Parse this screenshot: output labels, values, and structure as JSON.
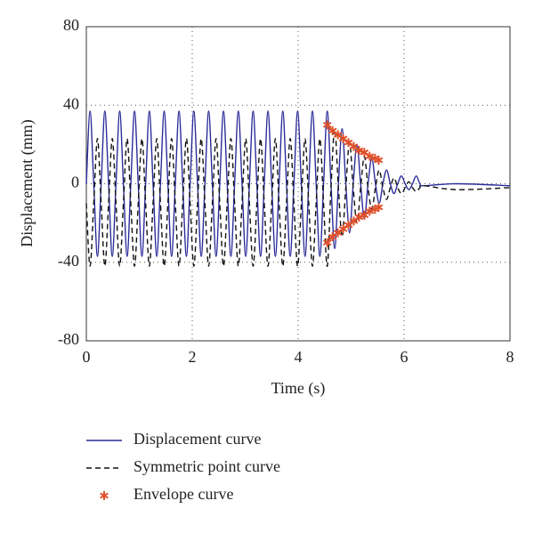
{
  "chart_data": {
    "type": "line",
    "xlabel": "Time (s)",
    "ylabel": "Displacement (mm)",
    "xlim": [
      0,
      8
    ],
    "xticks": [
      0,
      2,
      4,
      6,
      8
    ],
    "ylim": [
      -80,
      80
    ],
    "yticks": [
      -80,
      -40,
      0,
      40,
      80
    ],
    "grid": true,
    "x": [
      0,
      0.07,
      0.14,
      0.21,
      0.28,
      0.35,
      0.42,
      0.49,
      0.56,
      0.63,
      0.7,
      0.77,
      0.84,
      0.91,
      0.98,
      1.05,
      1.12,
      1.19,
      1.26,
      1.33,
      1.4,
      1.47,
      1.54,
      1.61,
      1.68,
      1.75,
      1.82,
      1.89,
      1.96,
      2.03,
      2.1,
      2.17,
      2.24,
      2.31,
      2.38,
      2.45,
      2.52,
      2.59,
      2.66,
      2.73,
      2.8,
      2.87,
      2.94,
      3.01,
      3.08,
      3.15,
      3.22,
      3.29,
      3.36,
      3.43,
      3.5,
      3.57,
      3.64,
      3.71,
      3.78,
      3.85,
      3.92,
      3.99,
      4.06,
      4.13,
      4.2,
      4.27,
      4.34,
      4.41,
      4.48,
      4.55,
      4.62,
      4.69,
      4.76,
      4.83,
      4.9,
      4.97,
      5.04,
      5.11,
      5.18,
      5.25,
      5.32,
      5.39,
      5.46,
      5.53,
      5.6,
      5.67,
      5.74,
      5.81,
      5.88,
      5.95,
      6.02,
      6.09,
      6.16,
      6.23,
      6.3,
      6.37,
      7,
      8
    ],
    "series": [
      {
        "name": "Displacement curve",
        "color": "#2b2b9a",
        "dash": false,
        "values": [
          0,
          37,
          0,
          -37,
          0,
          37,
          0,
          -37,
          0,
          37,
          0,
          -37,
          0,
          37,
          0,
          -37,
          0,
          37,
          0,
          -37,
          0,
          37,
          0,
          -37,
          0,
          37,
          0,
          -37,
          0,
          37,
          0,
          -37,
          0,
          37,
          0,
          -37,
          0,
          37,
          0,
          -37,
          0,
          37,
          0,
          -37,
          0,
          37,
          0,
          -37,
          0,
          37,
          0,
          -37,
          0,
          37,
          0,
          -37,
          0,
          37,
          0,
          -37,
          0,
          37,
          0,
          -37,
          0,
          37,
          0,
          -33,
          0,
          28,
          0,
          -25,
          0,
          20,
          0,
          -18,
          0,
          13,
          0,
          -10,
          0,
          7,
          0,
          -5,
          0,
          4,
          0,
          -3,
          0,
          4,
          0,
          -1,
          0,
          -1
        ]
      },
      {
        "name": "Symmetric point curve",
        "color": "#111111",
        "dash": true,
        "values": [
          -10,
          -42,
          -10,
          23,
          -10,
          -42,
          -10,
          23,
          -10,
          -42,
          -10,
          23,
          -10,
          -42,
          -10,
          23,
          -10,
          -42,
          -10,
          23,
          -10,
          -42,
          -10,
          23,
          -10,
          -42,
          -10,
          23,
          -10,
          -42,
          -10,
          23,
          -10,
          -42,
          -10,
          23,
          -10,
          -42,
          -10,
          23,
          -10,
          -42,
          -10,
          23,
          -10,
          -42,
          -10,
          23,
          -10,
          -42,
          -10,
          23,
          -10,
          -42,
          -10,
          23,
          -10,
          -42,
          -10,
          23,
          -10,
          -42,
          -10,
          23,
          -10,
          -42,
          -2,
          28,
          -2,
          -27,
          -2,
          21,
          -2,
          -20,
          -2,
          14,
          -2,
          -13,
          -2,
          7,
          -2,
          -8,
          -2,
          3,
          -2,
          -5,
          -2,
          1,
          -2,
          -4,
          -2,
          -1,
          -3,
          -2
        ]
      },
      {
        "name": "Envelope curve",
        "color": "#e0502a",
        "marker": true,
        "x": [
          4.55,
          4.65,
          4.75,
          4.85,
          4.95,
          5.05,
          5.15,
          5.25,
          5.35,
          5.45,
          5.52
        ],
        "values": [
          30,
          27,
          25,
          23,
          21,
          19,
          17,
          16,
          14,
          13,
          12
        ],
        "values_lower": [
          -30,
          -27,
          -25,
          -23,
          -21,
          -19,
          -17,
          -16,
          -14,
          -13,
          -12
        ]
      }
    ]
  }
}
